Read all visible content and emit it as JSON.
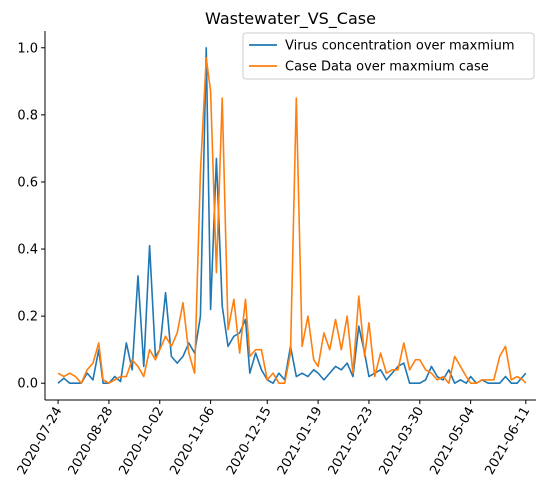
{
  "chart_data": {
    "type": "line",
    "title": "Wastewater_VS_Case",
    "xlabel": "",
    "ylabel": "",
    "x_ticks": [
      "2020-07-24",
      "2020-08-28",
      "2020-10-02",
      "2020-11-06",
      "2020-12-15",
      "2021-01-19",
      "2021-02-23",
      "2021-03-30",
      "2021-05-04",
      "2021-06-11"
    ],
    "y_ticks": [
      "0.0",
      "0.2",
      "0.4",
      "0.6",
      "0.8",
      "1.0"
    ],
    "ylim": [
      -0.05,
      1.05
    ],
    "xlim": [
      "2020-07-15",
      "2020-06-18"
    ],
    "legend_position": "upper-right",
    "grid": false,
    "series": [
      {
        "name": "Virus concentration over maxmium",
        "color": "#1f77b4",
        "x": [
          "2020-07-24",
          "2020-07-28",
          "2020-08-01",
          "2020-08-05",
          "2020-08-09",
          "2020-08-13",
          "2020-08-17",
          "2020-08-21",
          "2020-08-24",
          "2020-08-28",
          "2020-09-01",
          "2020-09-05",
          "2020-09-09",
          "2020-09-13",
          "2020-09-17",
          "2020-09-21",
          "2020-09-25",
          "2020-09-29",
          "2020-10-02",
          "2020-10-06",
          "2020-10-10",
          "2020-10-14",
          "2020-10-18",
          "2020-10-22",
          "2020-10-26",
          "2020-10-30",
          "2020-11-03",
          "2020-11-06",
          "2020-11-10",
          "2020-11-14",
          "2020-11-18",
          "2020-11-22",
          "2020-11-26",
          "2020-11-30",
          "2020-12-03",
          "2020-12-07",
          "2020-12-11",
          "2020-12-15",
          "2020-12-19",
          "2020-12-23",
          "2020-12-27",
          "2020-12-31",
          "2021-01-04",
          "2021-01-08",
          "2021-01-12",
          "2021-01-16",
          "2021-01-19",
          "2021-01-23",
          "2021-01-27",
          "2021-01-31",
          "2021-02-04",
          "2021-02-08",
          "2021-02-12",
          "2021-02-16",
          "2021-02-20",
          "2021-02-23",
          "2021-02-27",
          "2021-03-03",
          "2021-03-07",
          "2021-03-11",
          "2021-03-15",
          "2021-03-19",
          "2021-03-23",
          "2021-03-27",
          "2021-03-30",
          "2021-04-03",
          "2021-04-07",
          "2021-04-11",
          "2021-04-15",
          "2021-04-19",
          "2021-04-23",
          "2021-04-27",
          "2021-05-01",
          "2021-05-04",
          "2021-05-08",
          "2021-05-12",
          "2021-05-16",
          "2021-05-20",
          "2021-05-24",
          "2021-05-28",
          "2021-06-01",
          "2021-06-05",
          "2021-06-09",
          "2021-06-11"
        ],
        "values": [
          0.0,
          0.015,
          0.0,
          0.0,
          0.0,
          0.03,
          0.01,
          0.1,
          0.0,
          0.0,
          0.02,
          0.005,
          0.12,
          0.04,
          0.32,
          0.05,
          0.41,
          0.08,
          0.1,
          0.27,
          0.08,
          0.06,
          0.08,
          0.12,
          0.09,
          0.2,
          1.0,
          0.22,
          0.67,
          0.23,
          0.11,
          0.14,
          0.15,
          0.19,
          0.03,
          0.09,
          0.04,
          0.01,
          0.0,
          0.03,
          0.01,
          0.11,
          0.02,
          0.03,
          0.02,
          0.04,
          0.03,
          0.01,
          0.03,
          0.05,
          0.04,
          0.06,
          0.02,
          0.17,
          0.09,
          0.02,
          0.03,
          0.04,
          0.01,
          0.03,
          0.05,
          0.06,
          0.0,
          0.0,
          0.0,
          0.01,
          0.05,
          0.02,
          0.01,
          0.04,
          0.0,
          0.01,
          0.0,
          0.02,
          0.0,
          0.01,
          0.0,
          0.0,
          0.0,
          0.02,
          0.0,
          0.0,
          0.02,
          0.03
        ]
      },
      {
        "name": "Case Data over maxmium case",
        "color": "#ff7f0e",
        "x": [
          "2020-07-24",
          "2020-07-28",
          "2020-08-01",
          "2020-08-05",
          "2020-08-09",
          "2020-08-13",
          "2020-08-17",
          "2020-08-21",
          "2020-08-24",
          "2020-08-28",
          "2020-09-01",
          "2020-09-05",
          "2020-09-09",
          "2020-09-13",
          "2020-09-17",
          "2020-09-21",
          "2020-09-25",
          "2020-09-29",
          "2020-10-02",
          "2020-10-06",
          "2020-10-10",
          "2020-10-14",
          "2020-10-18",
          "2020-10-22",
          "2020-10-26",
          "2020-10-30",
          "2020-11-03",
          "2020-11-06",
          "2020-11-10",
          "2020-11-14",
          "2020-11-18",
          "2020-11-22",
          "2020-11-26",
          "2020-11-30",
          "2020-12-03",
          "2020-12-07",
          "2020-12-11",
          "2020-12-15",
          "2020-12-19",
          "2020-12-23",
          "2020-12-27",
          "2020-12-31",
          "2021-01-04",
          "2021-01-08",
          "2021-01-12",
          "2021-01-16",
          "2021-01-19",
          "2021-01-23",
          "2021-01-27",
          "2021-01-31",
          "2021-02-04",
          "2021-02-08",
          "2021-02-12",
          "2021-02-16",
          "2021-02-20",
          "2021-02-23",
          "2021-02-27",
          "2021-03-03",
          "2021-03-07",
          "2021-03-11",
          "2021-03-15",
          "2021-03-19",
          "2021-03-23",
          "2021-03-27",
          "2021-03-30",
          "2021-04-03",
          "2021-04-07",
          "2021-04-11",
          "2021-04-15",
          "2021-04-19",
          "2021-04-23",
          "2021-04-27",
          "2021-05-01",
          "2021-05-04",
          "2021-05-08",
          "2021-05-12",
          "2021-05-16",
          "2021-05-20",
          "2021-05-24",
          "2021-05-28",
          "2021-06-01",
          "2021-06-05",
          "2021-06-09",
          "2021-06-11"
        ],
        "values": [
          0.03,
          0.02,
          0.03,
          0.02,
          0.0,
          0.04,
          0.06,
          0.12,
          0.01,
          0.0,
          0.01,
          0.02,
          0.02,
          0.07,
          0.05,
          0.02,
          0.1,
          0.07,
          0.1,
          0.14,
          0.11,
          0.15,
          0.24,
          0.09,
          0.03,
          0.63,
          0.97,
          0.87,
          0.33,
          0.85,
          0.16,
          0.25,
          0.09,
          0.25,
          0.08,
          0.1,
          0.1,
          0.01,
          0.03,
          0.0,
          0.0,
          0.09,
          0.85,
          0.11,
          0.2,
          0.07,
          0.05,
          0.15,
          0.1,
          0.19,
          0.1,
          0.2,
          0.03,
          0.26,
          0.08,
          0.18,
          0.02,
          0.09,
          0.03,
          0.04,
          0.04,
          0.12,
          0.04,
          0.07,
          0.07,
          0.04,
          0.03,
          0.01,
          0.02,
          0.0,
          0.08,
          0.05,
          0.02,
          0.0,
          0.0,
          0.01,
          0.01,
          0.01,
          0.08,
          0.11,
          0.01,
          0.02,
          0.01,
          0.0
        ]
      }
    ]
  }
}
